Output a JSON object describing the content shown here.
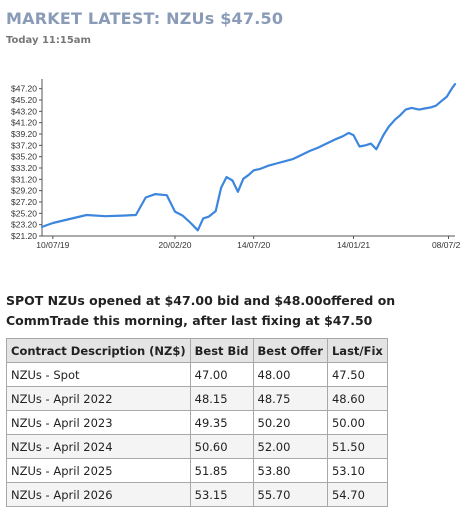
{
  "header": {
    "title": "MARKET LATEST: NZUs $47.50",
    "timestamp": "Today 11:15am"
  },
  "chart_data": {
    "type": "line",
    "title": "",
    "xlabel": "",
    "ylabel": "",
    "ylim": [
      21.2,
      48.2
    ],
    "grid": false,
    "y_ticks": [
      "$21.20",
      "$23.20",
      "$25.20",
      "$27.20",
      "$29.20",
      "$31.20",
      "$33.20",
      "$35.20",
      "$37.20",
      "$39.20",
      "$41.20",
      "$43.20",
      "$45.20",
      "$47.20"
    ],
    "x_ticks": [
      "10/07/19",
      "20/02/20",
      "14/07/20",
      "14/01/21",
      "08/07/21"
    ],
    "series_color": "#3d86de",
    "series": [
      {
        "x": [
          "2019-06-20",
          "2019-07-10",
          "2019-08-10",
          "2019-09-10",
          "2019-10-15",
          "2019-11-15",
          "2019-12-10",
          "2019-12-28",
          "2020-01-15",
          "2020-02-05",
          "2020-02-20",
          "2020-03-05",
          "2020-03-20",
          "2020-04-02",
          "2020-04-12",
          "2020-04-22",
          "2020-05-05",
          "2020-05-15",
          "2020-05-25",
          "2020-06-05",
          "2020-06-15",
          "2020-06-25",
          "2020-07-05",
          "2020-07-14",
          "2020-07-25",
          "2020-08-10",
          "2020-08-25",
          "2020-09-10",
          "2020-09-25",
          "2020-10-10",
          "2020-10-25",
          "2020-11-10",
          "2020-11-25",
          "2020-12-10",
          "2020-12-25",
          "2021-01-05",
          "2021-01-14",
          "2021-01-25",
          "2021-02-05",
          "2021-02-15",
          "2021-02-25",
          "2021-03-10",
          "2021-03-20",
          "2021-04-01",
          "2021-04-10",
          "2021-04-20",
          "2021-05-01",
          "2021-05-15",
          "2021-05-25",
          "2021-06-05",
          "2021-06-15",
          "2021-06-25",
          "2021-07-05",
          "2021-07-14",
          "2021-07-20"
        ],
        "y": [
          22.8,
          23.5,
          24.2,
          24.9,
          24.7,
          24.8,
          24.9,
          28.0,
          28.6,
          28.4,
          25.5,
          24.8,
          23.5,
          22.2,
          24.3,
          24.6,
          25.6,
          29.7,
          31.6,
          31.0,
          29.0,
          31.3,
          32.0,
          32.8,
          33.0,
          33.6,
          34.0,
          34.4,
          34.8,
          35.5,
          36.2,
          36.8,
          37.5,
          38.2,
          38.8,
          39.4,
          39.0,
          37.0,
          37.2,
          37.5,
          36.5,
          39.0,
          40.5,
          41.8,
          42.5,
          43.5,
          43.8,
          43.5,
          43.7,
          43.9,
          44.2,
          45.0,
          45.8,
          47.2,
          48.0
        ]
      }
    ]
  },
  "spot": {
    "text": "SPOT NZUs opened at $47.00 bid and $48.00offered on CommTrade this morning, after last fixing at $47.50"
  },
  "table": {
    "headers": [
      "Contract Description (NZ$)",
      "Best Bid",
      "Best Offer",
      "Last/Fix"
    ],
    "rows": [
      [
        "NZUs - Spot",
        "47.00",
        "48.00",
        "47.50"
      ],
      [
        "NZUs - April 2022",
        "48.15",
        "48.75",
        "48.60"
      ],
      [
        "NZUs - April 2023",
        "49.35",
        "50.20",
        "50.00"
      ],
      [
        "NZUs - April 2024",
        "50.60",
        "52.00",
        "51.50"
      ],
      [
        "NZUs - April 2025",
        "51.85",
        "53.80",
        "53.10"
      ],
      [
        "NZUs - April 2026",
        "53.15",
        "55.70",
        "54.70"
      ]
    ]
  }
}
